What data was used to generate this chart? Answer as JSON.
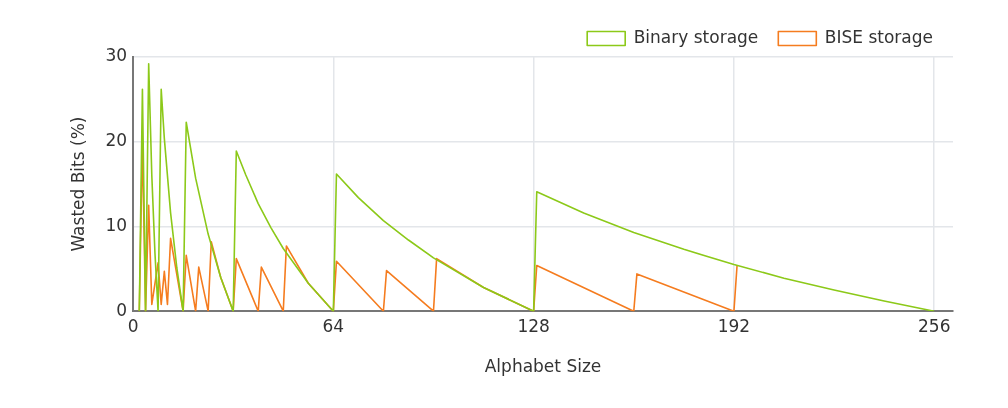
{
  "chart_data": {
    "type": "line",
    "xlabel": "Alphabet Size",
    "ylabel": "Wasted Bits (%)",
    "xlim": [
      0,
      262
    ],
    "xticks": [
      0,
      64,
      128,
      192,
      256
    ],
    "ylim": [
      0,
      30
    ],
    "yticks": [
      0,
      10,
      20,
      30
    ],
    "grid": true,
    "legend": "top right",
    "marker": "none",
    "line_style": "solid",
    "series": [
      {
        "name": "Binary storage",
        "color": "#8cc919",
        "x": [
          2,
          3,
          4,
          5,
          6,
          7,
          8,
          9,
          10,
          12,
          14,
          16,
          17,
          20,
          24,
          28,
          32,
          33,
          36,
          40,
          44,
          48,
          56,
          64,
          65,
          72,
          80,
          88,
          96,
          112,
          128,
          129,
          144,
          160,
          176,
          192,
          208,
          224,
          240,
          256
        ],
        "values": [
          0,
          26.2,
          0,
          29.2,
          16,
          6.9,
          0,
          26.2,
          20.4,
          11.6,
          5.1,
          0,
          22.3,
          15.7,
          9.1,
          4,
          0,
          18.9,
          16.1,
          12.7,
          9.9,
          7.4,
          3.3,
          0,
          16.2,
          13.4,
          10.7,
          8.4,
          6.3,
          2.8,
          0,
          14.1,
          11.6,
          9.3,
          7.3,
          5.5,
          3.9,
          2.5,
          1.2,
          0
        ]
      },
      {
        "name": "BISE storage",
        "color": "#f57c1f",
        "x": [
          2,
          3,
          4,
          5,
          6,
          8,
          9,
          10,
          11,
          12,
          16,
          17,
          20,
          21,
          24,
          25,
          28,
          32,
          33,
          40,
          41,
          48,
          49,
          56,
          64,
          65,
          80,
          81,
          96,
          97,
          112,
          128,
          129,
          160,
          161,
          192,
          193
        ],
        "values": [
          0,
          20,
          0,
          12.5,
          0.8,
          5.7,
          0.8,
          4.7,
          0.8,
          8.6,
          0,
          6.6,
          0,
          5.2,
          0,
          8.2,
          4,
          0,
          6.2,
          0,
          5.2,
          0,
          7.7,
          3.3,
          0,
          5.9,
          0,
          4.8,
          0,
          6.2,
          2.8,
          0,
          5.4,
          0,
          4.4,
          0,
          5.4
        ]
      }
    ]
  }
}
